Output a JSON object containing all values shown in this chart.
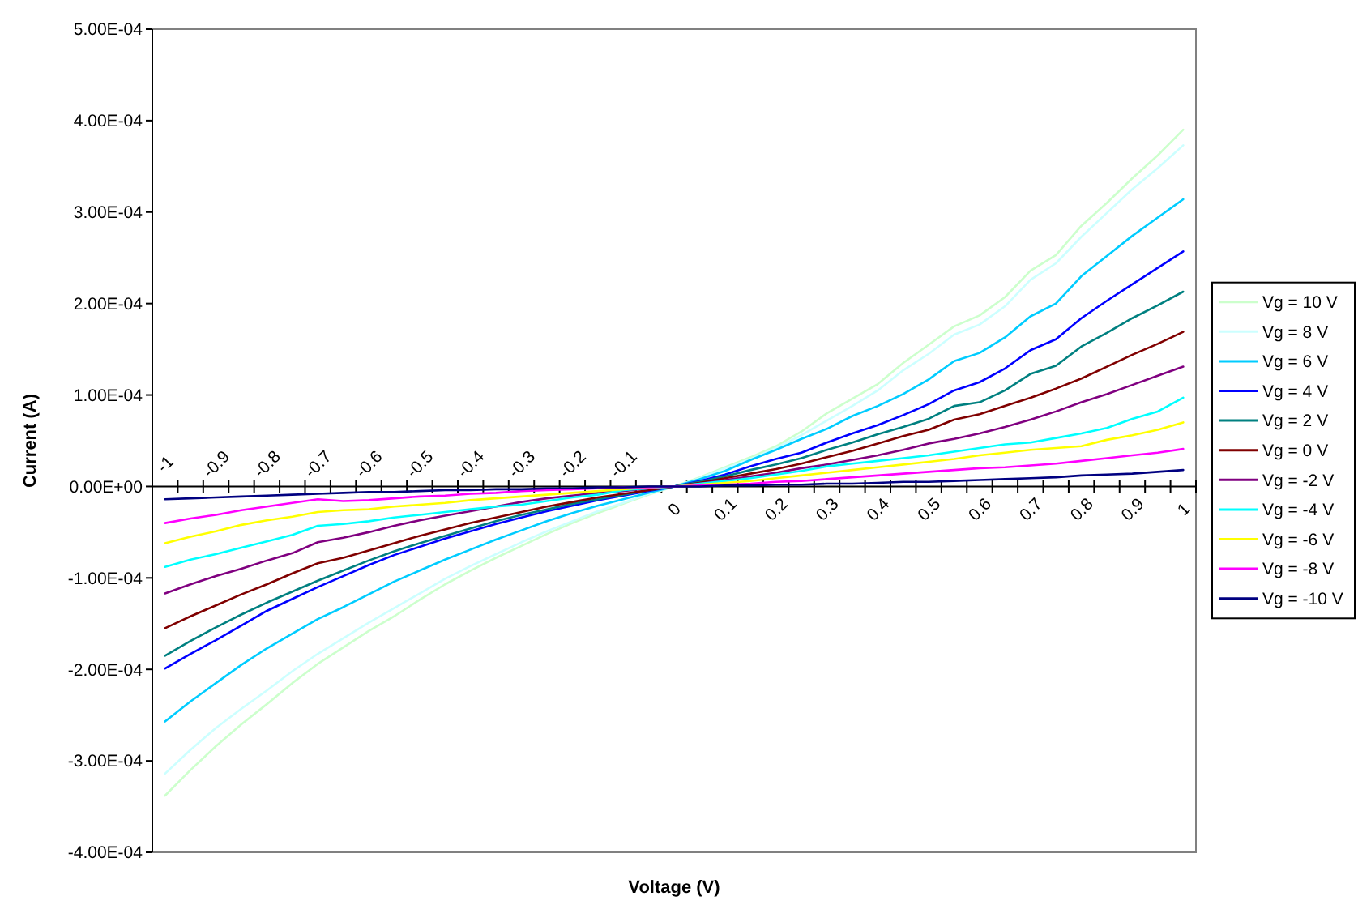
{
  "chart_data": {
    "type": "line",
    "xlabel": "Voltage (V)",
    "ylabel": "Current (A)",
    "categories": [
      "-1",
      null,
      "-0.9",
      null,
      "-0.8",
      null,
      "-0.7",
      null,
      "-0.6",
      null,
      "-0.5",
      null,
      "-0.4",
      null,
      "-0.3",
      null,
      "-0.2",
      null,
      "-0.1",
      null,
      "0",
      null,
      "0.1",
      null,
      "0.2",
      null,
      "0.3",
      null,
      "0.4",
      null,
      "0.5",
      null,
      "0.6",
      null,
      "0.7",
      null,
      "0.8",
      null,
      "0.9",
      null,
      "1"
    ],
    "ylim": [
      -0.0004,
      0.0005
    ],
    "yticks": [
      {
        "value": -0.0004,
        "label": "-4.00E-04"
      },
      {
        "value": -0.0003,
        "label": "-3.00E-04"
      },
      {
        "value": -0.0002,
        "label": "-2.00E-04"
      },
      {
        "value": -0.0001,
        "label": "-1.00E-04"
      },
      {
        "value": 0,
        "label": "0.00E+00"
      },
      {
        "value": 0.0001,
        "label": "1.00E-04"
      },
      {
        "value": 0.0002,
        "label": "2.00E-04"
      },
      {
        "value": 0.0003,
        "label": "3.00E-04"
      },
      {
        "value": 0.0004,
        "label": "4.00E-04"
      },
      {
        "value": 0.0005,
        "label": "5.00E-04"
      }
    ],
    "legend": "right",
    "series": [
      {
        "name": "Vg = 10 V",
        "color": "#ccffcc",
        "values": [
          -0.000338,
          -0.00031,
          -0.000284,
          -0.00026,
          -0.000238,
          -0.000215,
          -0.000194,
          -0.000176,
          -0.000158,
          -0.000142,
          -0.000124,
          -0.000107,
          -9.2e-05,
          -7.8e-05,
          -6.5e-05,
          -5.2e-05,
          -4e-05,
          -2.9e-05,
          -1.9e-05,
          -9e-06,
          0,
          1e-05,
          2.1e-05,
          3.2e-05,
          4.4e-05,
          6e-05,
          8e-05,
          9.6e-05,
          0.000112,
          0.000135,
          0.000155,
          0.000175,
          0.000187,
          0.000207,
          0.000236,
          0.000253,
          0.000285,
          0.00031,
          0.000337,
          0.000362,
          0.00039
        ]
      },
      {
        "name": "Vg = 8 V",
        "color": "#ccffff",
        "values": [
          -0.000314,
          -0.000288,
          -0.000264,
          -0.000243,
          -0.000223,
          -0.000202,
          -0.000183,
          -0.000166,
          -0.000149,
          -0.000133,
          -0.000117,
          -0.000101,
          -8.7e-05,
          -7.4e-05,
          -6.1e-05,
          -4.9e-05,
          -3.8e-05,
          -2.7e-05,
          -1.8e-05,
          -8e-06,
          0,
          9e-06,
          2e-05,
          3e-05,
          4.2e-05,
          5.6e-05,
          7.2e-05,
          8.8e-05,
          0.000105,
          0.000127,
          0.000145,
          0.000166,
          0.000177,
          0.000197,
          0.000226,
          0.000244,
          0.000273,
          0.000299,
          0.000325,
          0.000348,
          0.000373
        ]
      },
      {
        "name": "Vg = 6 V",
        "color": "#00ccff",
        "values": [
          -0.000257,
          -0.000235,
          -0.000215,
          -0.000195,
          -0.000177,
          -0.000161,
          -0.000145,
          -0.000132,
          -0.000118,
          -0.000104,
          -9.2e-05,
          -8e-05,
          -6.9e-05,
          -5.8e-05,
          -4.8e-05,
          -3.8e-05,
          -2.9e-05,
          -2.1e-05,
          -1.4e-05,
          -7e-06,
          0,
          8e-06,
          1.7e-05,
          2.9e-05,
          4e-05,
          5.2e-05,
          6.3e-05,
          7.7e-05,
          8.8e-05,
          0.000101,
          0.000117,
          0.000137,
          0.000146,
          0.000163,
          0.000186,
          0.0002,
          0.00023,
          0.000252,
          0.000274,
          0.000294,
          0.000314
        ]
      },
      {
        "name": "Vg = 4 V",
        "color": "#0000ff",
        "values": [
          -0.000199,
          -0.000183,
          -0.000168,
          -0.000152,
          -0.000136,
          -0.000123,
          -0.00011,
          -9.8e-05,
          -8.6e-05,
          -7.5e-05,
          -6.6e-05,
          -5.7e-05,
          -4.9e-05,
          -4.1e-05,
          -3.4e-05,
          -2.7e-05,
          -2.1e-05,
          -1.5e-05,
          -1e-05,
          -5e-06,
          0,
          6e-06,
          1.3e-05,
          2.2e-05,
          3e-05,
          3.7e-05,
          4.8e-05,
          5.8e-05,
          6.7e-05,
          7.8e-05,
          9e-05,
          0.000105,
          0.000114,
          0.000129,
          0.000149,
          0.000161,
          0.000184,
          0.000203,
          0.000221,
          0.000239,
          0.000257
        ]
      },
      {
        "name": "Vg = 2 V",
        "color": "#008080",
        "values": [
          -0.000185,
          -0.000169,
          -0.000154,
          -0.00014,
          -0.000127,
          -0.000115,
          -0.000103,
          -9.2e-05,
          -8.1e-05,
          -7.1e-05,
          -6.2e-05,
          -5.4e-05,
          -4.6e-05,
          -3.8e-05,
          -3.1e-05,
          -2.5e-05,
          -1.9e-05,
          -1.4e-05,
          -9e-06,
          -4e-06,
          0,
          5e-06,
          1.1e-05,
          1.8e-05,
          2.4e-05,
          3.1e-05,
          4e-05,
          4.8e-05,
          5.7e-05,
          6.5e-05,
          7.4e-05,
          8.8e-05,
          9.2e-05,
          0.000105,
          0.000123,
          0.000132,
          0.000153,
          0.000168,
          0.000184,
          0.000198,
          0.000213
        ]
      },
      {
        "name": "Vg = 0 V",
        "color": "#800000",
        "values": [
          -0.000155,
          -0.000142,
          -0.00013,
          -0.000118,
          -0.000107,
          -9.5e-05,
          -8.4e-05,
          -7.8e-05,
          -7e-05,
          -6.2e-05,
          -5.4e-05,
          -4.7e-05,
          -4e-05,
          -3.4e-05,
          -2.8e-05,
          -2.2e-05,
          -1.7e-05,
          -1.2e-05,
          -8e-06,
          -4e-06,
          0,
          4e-06,
          9e-06,
          1.4e-05,
          1.9e-05,
          2.5e-05,
          3.2e-05,
          3.9e-05,
          4.7e-05,
          5.5e-05,
          6.2e-05,
          7.3e-05,
          7.9e-05,
          8.8e-05,
          9.7e-05,
          0.000107,
          0.000118,
          0.000131,
          0.000144,
          0.000156,
          0.000169
        ]
      },
      {
        "name": "Vg = -2 V",
        "color": "#800080",
        "values": [
          -0.000117,
          -0.000107,
          -9.8e-05,
          -9e-05,
          -8.1e-05,
          -7.3e-05,
          -6.1e-05,
          -5.6e-05,
          -5e-05,
          -4.3e-05,
          -3.7e-05,
          -3.2e-05,
          -2.7e-05,
          -2.2e-05,
          -1.7e-05,
          -1.3e-05,
          -1e-05,
          -7e-06,
          -5e-06,
          -2e-06,
          0,
          3e-06,
          7e-06,
          1.1e-05,
          1.5e-05,
          2e-05,
          2.4e-05,
          2.9e-05,
          3.4e-05,
          4e-05,
          4.7e-05,
          5.2e-05,
          5.8e-05,
          6.5e-05,
          7.3e-05,
          8.2e-05,
          9.2e-05,
          0.000101,
          0.000111,
          0.000121,
          0.000131
        ]
      },
      {
        "name": "Vg = -4 V",
        "color": "#00ffff",
        "values": [
          -8.8e-05,
          -8e-05,
          -7.4e-05,
          -6.7e-05,
          -6e-05,
          -5.3e-05,
          -4.3e-05,
          -4.1e-05,
          -3.8e-05,
          -3.4e-05,
          -3.1e-05,
          -2.8e-05,
          -2.5e-05,
          -2.2e-05,
          -2e-05,
          -1.6e-05,
          -1.2e-05,
          -9e-06,
          -4e-06,
          -2e-06,
          0,
          3e-06,
          6e-06,
          9e-06,
          1.3e-05,
          1.7e-05,
          2.2e-05,
          2.5e-05,
          2.8e-05,
          3.1e-05,
          3.4e-05,
          3.8e-05,
          4.2e-05,
          4.6e-05,
          4.8e-05,
          5.3e-05,
          5.8e-05,
          6.4e-05,
          7.4e-05,
          8.2e-05,
          9.7e-05
        ]
      },
      {
        "name": "Vg = -6 V",
        "color": "#ffff00",
        "values": [
          -6.2e-05,
          -5.5e-05,
          -4.9e-05,
          -4.2e-05,
          -3.7e-05,
          -3.3e-05,
          -2.8e-05,
          -2.6e-05,
          -2.5e-05,
          -2.2e-05,
          -2e-05,
          -1.8e-05,
          -1.5e-05,
          -1.3e-05,
          -1.1e-05,
          -9e-06,
          -7e-06,
          -5e-06,
          -3e-06,
          -1e-06,
          0,
          2e-06,
          4e-06,
          6e-06,
          9e-06,
          1.2e-05,
          1.5e-05,
          1.8e-05,
          2.1e-05,
          2.4e-05,
          2.7e-05,
          3e-05,
          3.4e-05,
          3.7e-05,
          4e-05,
          4.2e-05,
          4.4e-05,
          5.1e-05,
          5.6e-05,
          6.2e-05,
          7e-05
        ]
      },
      {
        "name": "Vg = -8 V",
        "color": "#ff00ff",
        "values": [
          -4e-05,
          -3.5e-05,
          -3.1e-05,
          -2.6e-05,
          -2.2e-05,
          -1.8e-05,
          -1.4e-05,
          -1.6e-05,
          -1.5e-05,
          -1.3e-05,
          -1.1e-05,
          -1e-05,
          -8e-06,
          -7e-06,
          -5e-06,
          -4e-06,
          -3e-06,
          -2e-06,
          -1e-06,
          -1e-06,
          0,
          1e-06,
          2e-06,
          3e-06,
          5e-06,
          6e-06,
          8e-06,
          1e-05,
          1.2e-05,
          1.4e-05,
          1.6e-05,
          1.8e-05,
          2e-05,
          2.1e-05,
          2.3e-05,
          2.5e-05,
          2.8e-05,
          3.1e-05,
          3.4e-05,
          3.7e-05,
          4.1e-05
        ]
      },
      {
        "name": "Vg = -10 V",
        "color": "#000080",
        "values": [
          -1.4e-05,
          -1.3e-05,
          -1.2e-05,
          -1.1e-05,
          -1e-05,
          -9e-06,
          -8e-06,
          -7e-06,
          -6e-06,
          -6e-06,
          -5e-06,
          -4e-06,
          -4e-06,
          -3e-06,
          -3e-06,
          -2e-06,
          -2e-06,
          -1e-06,
          -1e-06,
          0,
          0,
          0,
          1e-06,
          1e-06,
          2e-06,
          2e-06,
          3e-06,
          3e-06,
          4e-06,
          5e-06,
          5e-06,
          6e-06,
          7e-06,
          8e-06,
          9e-06,
          1e-05,
          1.2e-05,
          1.3e-05,
          1.4e-05,
          1.6e-05,
          1.8e-05
        ]
      }
    ]
  }
}
